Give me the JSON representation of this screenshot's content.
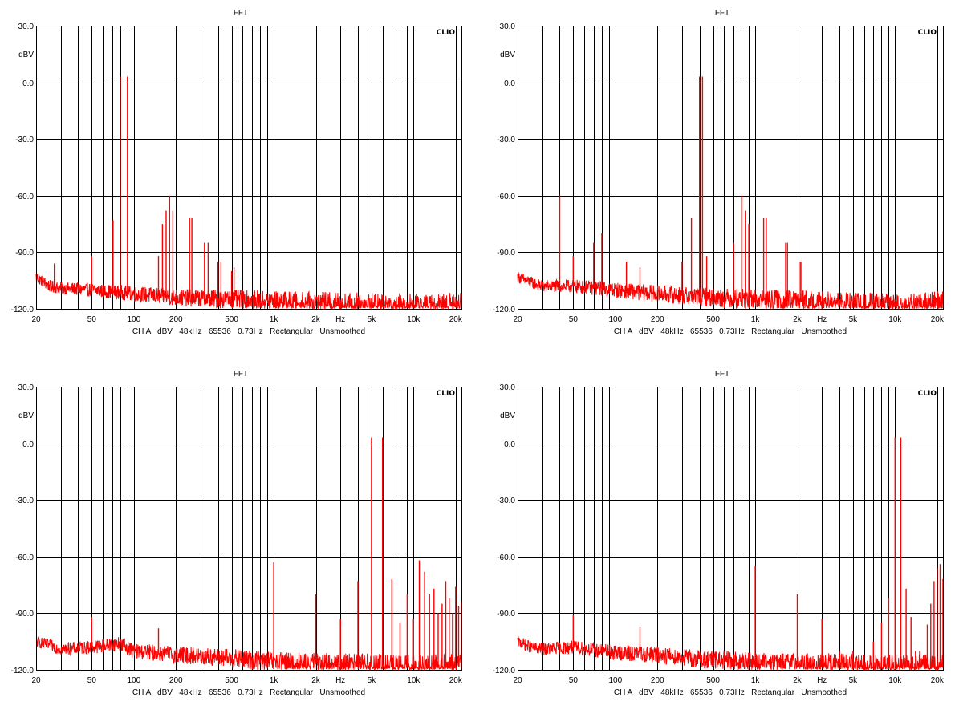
{
  "chart_data": [
    {
      "type": "line",
      "title": "FFT",
      "brand": "CLIO",
      "ylabel": "dBV",
      "unit_label": "Hz",
      "info": "CH A   dBV   48kHz   65536   0.73Hz   Rectangular   Unsmoothed",
      "x_scale": "log",
      "xlim": [
        20,
        22000
      ],
      "ylim": [
        -120,
        30
      ],
      "grid": true,
      "color": "#ff0000",
      "y_ticks": [
        "30.0",
        "0.0",
        "-30.0",
        "-60.0",
        "-90.0",
        "-120.0"
      ],
      "x_tick_labels": [
        [
          "20",
          20
        ],
        [
          "50",
          50
        ],
        [
          "100",
          100
        ],
        [
          "200",
          200
        ],
        [
          "500",
          500
        ],
        [
          "1k",
          1000
        ],
        [
          "2k",
          2000
        ],
        [
          "Hz",
          3000
        ],
        [
          "5k",
          5000
        ],
        [
          "10k",
          10000
        ],
        [
          "20k",
          20000
        ]
      ],
      "noise_floor": [
        [
          20,
          -103
        ],
        [
          25,
          -108
        ],
        [
          30,
          -109
        ],
        [
          50,
          -110
        ],
        [
          100,
          -112
        ],
        [
          200,
          -114
        ],
        [
          500,
          -115
        ],
        [
          1000,
          -116
        ],
        [
          2000,
          -117
        ],
        [
          5000,
          -118
        ],
        [
          10000,
          -119
        ],
        [
          20000,
          -119
        ],
        [
          22000,
          -118
        ]
      ],
      "peaks": [
        [
          27,
          -96
        ],
        [
          50,
          -92
        ],
        [
          71,
          -73
        ],
        [
          80,
          3
        ],
        [
          90,
          3
        ],
        [
          150,
          -92
        ],
        [
          160,
          -75
        ],
        [
          170,
          -68
        ],
        [
          180,
          -60
        ],
        [
          190,
          -68
        ],
        [
          250,
          -72
        ],
        [
          260,
          -72
        ],
        [
          320,
          -85
        ],
        [
          340,
          -85
        ],
        [
          400,
          -95
        ],
        [
          420,
          -95
        ],
        [
          500,
          -100
        ],
        [
          520,
          -98
        ]
      ]
    },
    {
      "type": "line",
      "title": "FFT",
      "brand": "CLIO",
      "ylabel": "dBV",
      "unit_label": "Hz",
      "info": "CH A   dBV   48kHz   65536   0.73Hz   Rectangular   Unsmoothed",
      "x_scale": "log",
      "xlim": [
        20,
        22000
      ],
      "ylim": [
        -120,
        30
      ],
      "grid": true,
      "color": "#ff0000",
      "y_ticks": [
        "30.0",
        "0.0",
        "-30.0",
        "-60.0",
        "-90.0",
        "-120.0"
      ],
      "x_tick_labels": [
        [
          "20",
          20
        ],
        [
          "50",
          50
        ],
        [
          "100",
          100
        ],
        [
          "200",
          200
        ],
        [
          "500",
          500
        ],
        [
          "1k",
          1000
        ],
        [
          "2k",
          2000
        ],
        [
          "Hz",
          3000
        ],
        [
          "5k",
          5000
        ],
        [
          "10k",
          10000
        ],
        [
          "20k",
          20000
        ]
      ],
      "noise_floor": [
        [
          20,
          -103
        ],
        [
          25,
          -106
        ],
        [
          30,
          -108
        ],
        [
          50,
          -108
        ],
        [
          100,
          -110
        ],
        [
          200,
          -112
        ],
        [
          500,
          -114
        ],
        [
          1000,
          -115
        ],
        [
          2000,
          -116
        ],
        [
          5000,
          -118
        ],
        [
          10000,
          -119
        ],
        [
          20000,
          -118
        ],
        [
          22000,
          -117
        ]
      ],
      "peaks": [
        [
          40,
          -60
        ],
        [
          50,
          -92
        ],
        [
          70,
          -85
        ],
        [
          80,
          -80
        ],
        [
          120,
          -95
        ],
        [
          150,
          -98
        ],
        [
          300,
          -95
        ],
        [
          350,
          -72
        ],
        [
          400,
          3
        ],
        [
          420,
          3
        ],
        [
          450,
          -92
        ],
        [
          700,
          -85
        ],
        [
          800,
          -60
        ],
        [
          850,
          -68
        ],
        [
          900,
          -75
        ],
        [
          1150,
          -72
        ],
        [
          1200,
          -72
        ],
        [
          1650,
          -85
        ],
        [
          1700,
          -85
        ],
        [
          2100,
          -95
        ],
        [
          2150,
          -95
        ]
      ]
    },
    {
      "type": "line",
      "title": "FFT",
      "brand": "CLIO",
      "ylabel": "dBV",
      "unit_label": "Hz",
      "info": "CH A   dBV   48kHz   65536   0.73Hz   Rectangular   Unsmoothed",
      "x_scale": "log",
      "xlim": [
        20,
        22000
      ],
      "ylim": [
        -120,
        30
      ],
      "grid": true,
      "color": "#ff0000",
      "y_ticks": [
        "30.0",
        "0.0",
        "-30.0",
        "-60.0",
        "-90.0",
        "-120.0"
      ],
      "x_tick_labels": [
        [
          "20",
          20
        ],
        [
          "50",
          50
        ],
        [
          "100",
          100
        ],
        [
          "200",
          200
        ],
        [
          "500",
          500
        ],
        [
          "1k",
          1000
        ],
        [
          "2k",
          2000
        ],
        [
          "Hz",
          3000
        ],
        [
          "5k",
          5000
        ],
        [
          "10k",
          10000
        ],
        [
          "20k",
          20000
        ]
      ],
      "noise_floor": [
        [
          20,
          -105
        ],
        [
          25,
          -107
        ],
        [
          30,
          -109
        ],
        [
          50,
          -108
        ],
        [
          80,
          -106
        ],
        [
          100,
          -110
        ],
        [
          200,
          -112
        ],
        [
          500,
          -114
        ],
        [
          1000,
          -116
        ],
        [
          2000,
          -117
        ],
        [
          5000,
          -118
        ],
        [
          10000,
          -119
        ],
        [
          20000,
          -119
        ],
        [
          22000,
          -118
        ]
      ],
      "peaks": [
        [
          50,
          -92
        ],
        [
          150,
          -98
        ],
        [
          1000,
          -63
        ],
        [
          2000,
          -80
        ],
        [
          3000,
          -93
        ],
        [
          4000,
          -73
        ],
        [
          5000,
          3
        ],
        [
          6000,
          3
        ],
        [
          7000,
          -72
        ],
        [
          8000,
          -95
        ],
        [
          9000,
          -80
        ],
        [
          10000,
          -93
        ],
        [
          11000,
          -62
        ],
        [
          12000,
          -68
        ],
        [
          13000,
          -80
        ],
        [
          14000,
          -77
        ],
        [
          15000,
          -90
        ],
        [
          16000,
          -85
        ],
        [
          17000,
          -73
        ],
        [
          18000,
          -82
        ],
        [
          19000,
          -90
        ],
        [
          20000,
          -76
        ],
        [
          21000,
          -86
        ],
        [
          22000,
          -84
        ]
      ]
    },
    {
      "type": "line",
      "title": "FFT",
      "brand": "CLIO",
      "ylabel": "dBV",
      "unit_label": "Hz",
      "info": "CH A   dBV   48kHz   65536   0.73Hz   Rectangular   Unsmoothed",
      "x_scale": "log",
      "xlim": [
        20,
        22000
      ],
      "ylim": [
        -120,
        30
      ],
      "grid": true,
      "color": "#ff0000",
      "y_ticks": [
        "30.0",
        "0.0",
        "-30.0",
        "-60.0",
        "-90.0",
        "-120.0"
      ],
      "x_tick_labels": [
        [
          "20",
          20
        ],
        [
          "50",
          50
        ],
        [
          "100",
          100
        ],
        [
          "200",
          200
        ],
        [
          "500",
          500
        ],
        [
          "1k",
          1000
        ],
        [
          "2k",
          2000
        ],
        [
          "Hz",
          3000
        ],
        [
          "5k",
          5000
        ],
        [
          "10k",
          10000
        ],
        [
          "20k",
          20000
        ]
      ],
      "noise_floor": [
        [
          20,
          -105
        ],
        [
          25,
          -108
        ],
        [
          30,
          -109
        ],
        [
          50,
          -108
        ],
        [
          100,
          -111
        ],
        [
          200,
          -112
        ],
        [
          500,
          -115
        ],
        [
          1000,
          -116
        ],
        [
          2000,
          -117
        ],
        [
          5000,
          -118
        ],
        [
          10000,
          -119
        ],
        [
          20000,
          -119
        ],
        [
          22000,
          -118
        ]
      ],
      "peaks": [
        [
          50,
          -91
        ],
        [
          150,
          -97
        ],
        [
          1000,
          -65
        ],
        [
          2000,
          -80
        ],
        [
          3000,
          -93
        ],
        [
          4000,
          -110
        ],
        [
          5000,
          -110
        ],
        [
          6000,
          -112
        ],
        [
          7000,
          -105
        ],
        [
          8000,
          -95
        ],
        [
          9000,
          -82
        ],
        [
          10000,
          3
        ],
        [
          11000,
          3
        ],
        [
          12000,
          -77
        ],
        [
          13000,
          -92
        ],
        [
          14000,
          -110
        ],
        [
          15000,
          -110
        ],
        [
          17000,
          -96
        ],
        [
          18000,
          -85
        ],
        [
          19000,
          -73
        ],
        [
          20000,
          -66
        ],
        [
          21000,
          -64
        ],
        [
          22000,
          -72
        ]
      ]
    }
  ]
}
